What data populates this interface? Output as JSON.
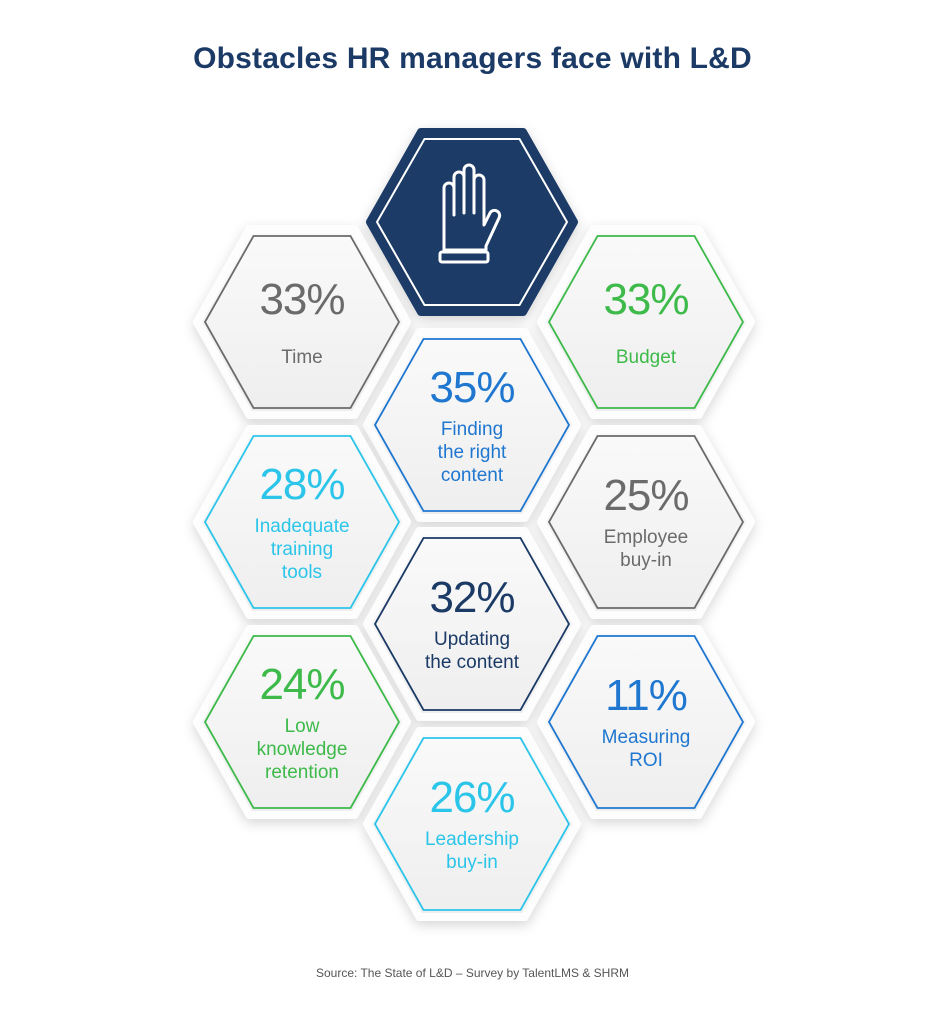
{
  "title": "Obstacles HR managers face with L&D",
  "center_icon": {
    "name": "raised-hand-icon",
    "color": "#1b3a66"
  },
  "colors": {
    "gray": "#6b6b6b",
    "green": "#3dba4a",
    "blue": "#1f77d0",
    "cyan": "#2cc5ea",
    "navy": "#1b3a66"
  },
  "obstacles": [
    {
      "percent": "33%",
      "label": "Time",
      "color": "#6b6b6b"
    },
    {
      "percent": "33%",
      "label": "Budget",
      "color": "#3dba4a"
    },
    {
      "percent": "35%",
      "label": "Finding\nthe right\ncontent",
      "color": "#1f77d0"
    },
    {
      "percent": "28%",
      "label": "Inadequate\ntraining\ntools",
      "color": "#2cc5ea"
    },
    {
      "percent": "25%",
      "label": "Employee\nbuy-in",
      "color": "#6b6b6b"
    },
    {
      "percent": "32%",
      "label": "Updating\nthe content",
      "color": "#1b3a66"
    },
    {
      "percent": "24%",
      "label": "Low\nknowledge\nretention",
      "color": "#3dba4a"
    },
    {
      "percent": "11%",
      "label": "Measuring\nROI",
      "color": "#1f77d0"
    },
    {
      "percent": "26%",
      "label": "Leadership\nbuy-in",
      "color": "#2cc5ea"
    }
  ],
  "source": "Source: The State of L&D – Survey by TalentLMS & SHRM"
}
